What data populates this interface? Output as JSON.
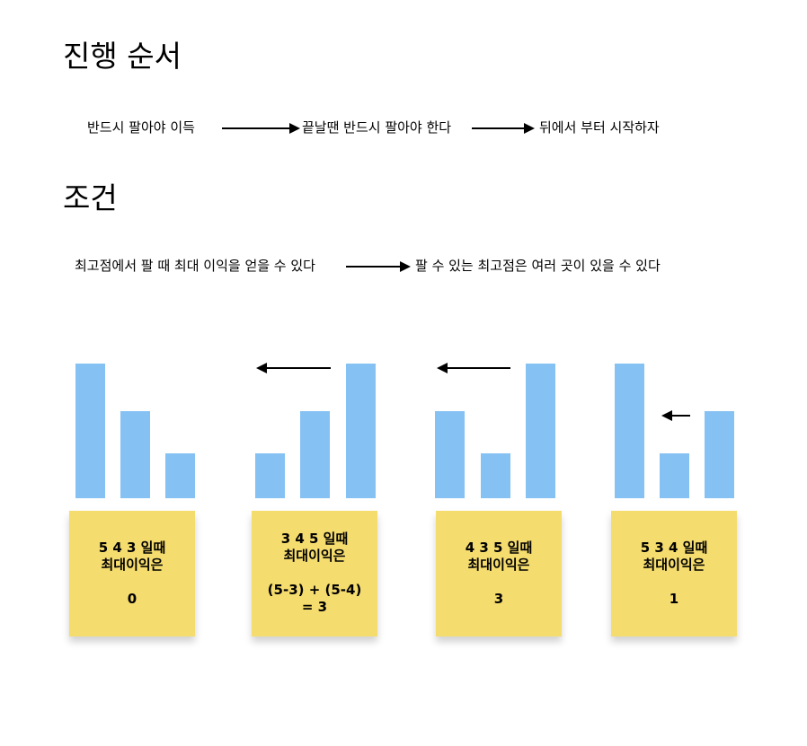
{
  "sections": {
    "process_title": "진행 순서",
    "condition_title": "조건"
  },
  "process_flow": {
    "step1": "반드시 팔아야 이득",
    "step2": "끝날땐 반드시 팔아야 한다",
    "step3": "뒤에서 부터 시작하자"
  },
  "condition_flow": {
    "step1": "최고점에서 팔 때 최대 이익을 얻을 수 있다",
    "step2": "팔 수 있는 최고점은 여러 곳이 있을 수 있다"
  },
  "examples": [
    {
      "prices": [
        5,
        4,
        3
      ],
      "line1": "5 4 3 일때",
      "line2": "최대이익은",
      "line3": "0",
      "line4": ""
    },
    {
      "prices": [
        3,
        4,
        5
      ],
      "line1": "3 4 5 일때",
      "line2": "최대이익은",
      "line3": "(5-3) + (5-4)",
      "line4": "= 3"
    },
    {
      "prices": [
        4,
        3,
        5
      ],
      "line1": "4 3 5 일때",
      "line2": "최대이익은",
      "line3": "3",
      "line4": ""
    },
    {
      "prices": [
        5,
        3,
        4
      ],
      "line1": "5 3 4 일때",
      "line2": "최대이익은",
      "line3": "1",
      "line4": ""
    }
  ],
  "colors": {
    "bar": "#85c2f3",
    "note": "#f5dc6e",
    "arrow": "#000000"
  }
}
